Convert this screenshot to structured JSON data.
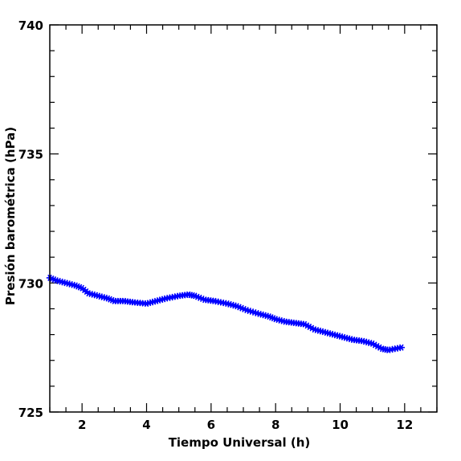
{
  "chart_data": {
    "type": "scatter",
    "title": "",
    "xlabel": "Tiempo Universal (h)",
    "ylabel": "Presión barométrica (hPa)",
    "xlim": [
      1,
      13
    ],
    "ylim": [
      725,
      740
    ],
    "xticks": [
      2,
      4,
      6,
      8,
      10,
      12
    ],
    "yticks": [
      725,
      730,
      735,
      740
    ],
    "grid": false,
    "marker": "star",
    "color": "#0000ff",
    "series": [
      {
        "x": [
          1.0,
          1.2,
          1.5,
          1.8,
          2.0,
          2.2,
          2.5,
          2.8,
          3.0,
          3.3,
          3.6,
          4.0,
          4.3,
          4.6,
          5.0,
          5.3,
          5.5,
          5.8,
          6.1,
          6.5,
          6.8,
          7.1,
          7.5,
          7.8,
          8.0,
          8.3,
          8.6,
          8.9,
          9.2,
          9.5,
          9.8,
          10.1,
          10.4,
          10.7,
          11.0,
          11.3,
          11.5,
          11.9
        ],
        "y": [
          730.2,
          730.1,
          730.0,
          729.9,
          729.8,
          729.6,
          729.5,
          729.4,
          729.3,
          729.3,
          729.25,
          729.2,
          729.3,
          729.4,
          729.5,
          729.55,
          729.5,
          729.35,
          729.3,
          729.2,
          729.1,
          728.95,
          728.8,
          728.7,
          728.6,
          728.5,
          728.45,
          728.4,
          728.2,
          728.1,
          728.0,
          727.9,
          727.8,
          727.75,
          727.65,
          727.45,
          727.4,
          727.5
        ]
      }
    ]
  }
}
